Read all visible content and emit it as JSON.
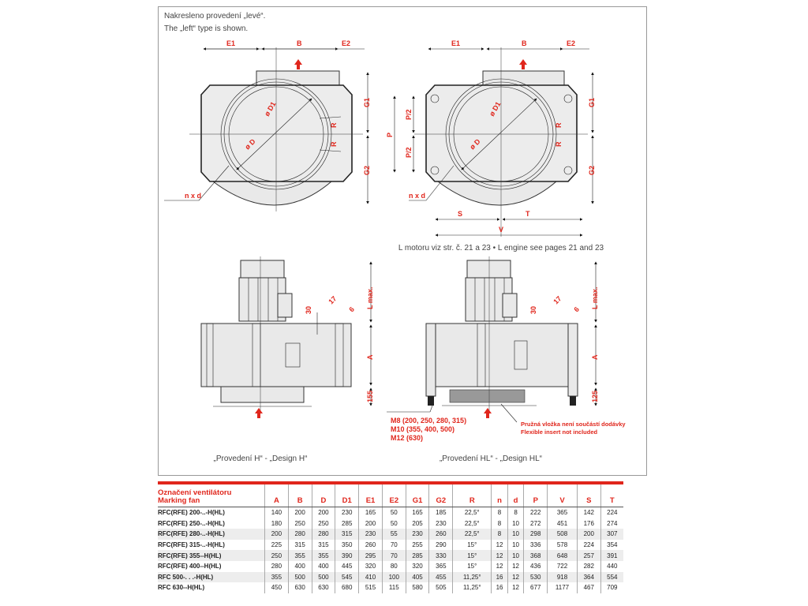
{
  "notes": {
    "line1": "Nakresleno provedení „levé“.",
    "line2": "The „left“ type is shown."
  },
  "top_view_h": {
    "E1": "E1",
    "B": "B",
    "E2": "E2",
    "G1": "G1",
    "G2": "G2",
    "D1": "ø D1",
    "D": "ø D",
    "R1": "R",
    "R2": "R",
    "nxd": "n x d"
  },
  "top_view_hl": {
    "E1": "E1",
    "B": "B",
    "E2": "E2",
    "G1": "G1",
    "G2": "G2",
    "D1": "ø D1",
    "D": "ø D",
    "R1": "R",
    "R2": "R",
    "nxd": "n x d",
    "P": "P",
    "P2a": "P/2",
    "P2b": "P/2",
    "S": "S",
    "T": "T",
    "V": "V"
  },
  "motor_note": "L motoru viz str. č. 21 a 23 • L engine see pages 21 and 23",
  "side_view_h": {
    "Lmax": "L max.",
    "d30": "30",
    "d17": "17",
    "d6": "6",
    "A": "A",
    "base": "155",
    "caption": "„Provedení H“ - „Design H“"
  },
  "side_view_hl": {
    "Lmax": "L max.",
    "d30": "30",
    "d17": "17",
    "d6": "6",
    "A": "A",
    "base": "125",
    "caption": "„Provedení HL“ - „Design HL“",
    "bolts": [
      "M8 (200, 250, 280, 315)",
      "M10 (355, 400, 500)",
      "M12 (630)"
    ],
    "insert_cz": "Pružná vložka není součástí dodávky",
    "insert_en": "Flexible insert not included"
  },
  "colors": {
    "accent": "#e0261c",
    "frame": "#999999"
  },
  "table": {
    "header_cz": "Označení ventilátoru",
    "header_en": "Marking fan",
    "columns": [
      "A",
      "B",
      "D",
      "D1",
      "E1",
      "E2",
      "G1",
      "G2",
      "R",
      "n",
      "d",
      "P",
      "V",
      "S",
      "T"
    ],
    "rows": [
      {
        "name": "RFC(RFE) 200-..-H(HL)",
        "values": [
          "140",
          "200",
          "200",
          "230",
          "165",
          "50",
          "165",
          "185",
          "22,5°",
          "8",
          "8",
          "222",
          "365",
          "142",
          "224"
        ]
      },
      {
        "name": "RFC(RFE) 250-..-H(HL)",
        "values": [
          "180",
          "250",
          "250",
          "285",
          "200",
          "50",
          "205",
          "230",
          "22,5°",
          "8",
          "10",
          "272",
          "451",
          "176",
          "274"
        ]
      },
      {
        "name": "RFC(RFE) 280-..-H(HL)",
        "values": [
          "200",
          "280",
          "280",
          "315",
          "230",
          "55",
          "230",
          "260",
          "22,5°",
          "8",
          "10",
          "298",
          "508",
          "200",
          "307"
        ]
      },
      {
        "name": "RFC(RFE) 315-..-H(HL)",
        "values": [
          "225",
          "315",
          "315",
          "350",
          "260",
          "70",
          "255",
          "290",
          "15°",
          "12",
          "10",
          "336",
          "578",
          "224",
          "354"
        ]
      },
      {
        "name": "RFC(RFE) 355--H(HL)",
        "values": [
          "250",
          "355",
          "355",
          "390",
          "295",
          "70",
          "285",
          "330",
          "15°",
          "12",
          "10",
          "368",
          "648",
          "257",
          "391"
        ]
      },
      {
        "name": "RFC(RFE) 400--H(HL)",
        "values": [
          "280",
          "400",
          "400",
          "445",
          "320",
          "80",
          "320",
          "365",
          "15°",
          "12",
          "12",
          "436",
          "722",
          "282",
          "440"
        ]
      },
      {
        "name": "RFC 500-. . .-H(HL)",
        "values": [
          "355",
          "500",
          "500",
          "545",
          "410",
          "100",
          "405",
          "455",
          "11,25°",
          "16",
          "12",
          "530",
          "918",
          "364",
          "554"
        ]
      },
      {
        "name": "RFC 630--H(HL)",
        "values": [
          "450",
          "630",
          "630",
          "680",
          "515",
          "115",
          "580",
          "505",
          "11,25°",
          "16",
          "12",
          "677",
          "1177",
          "467",
          "709"
        ]
      }
    ]
  }
}
